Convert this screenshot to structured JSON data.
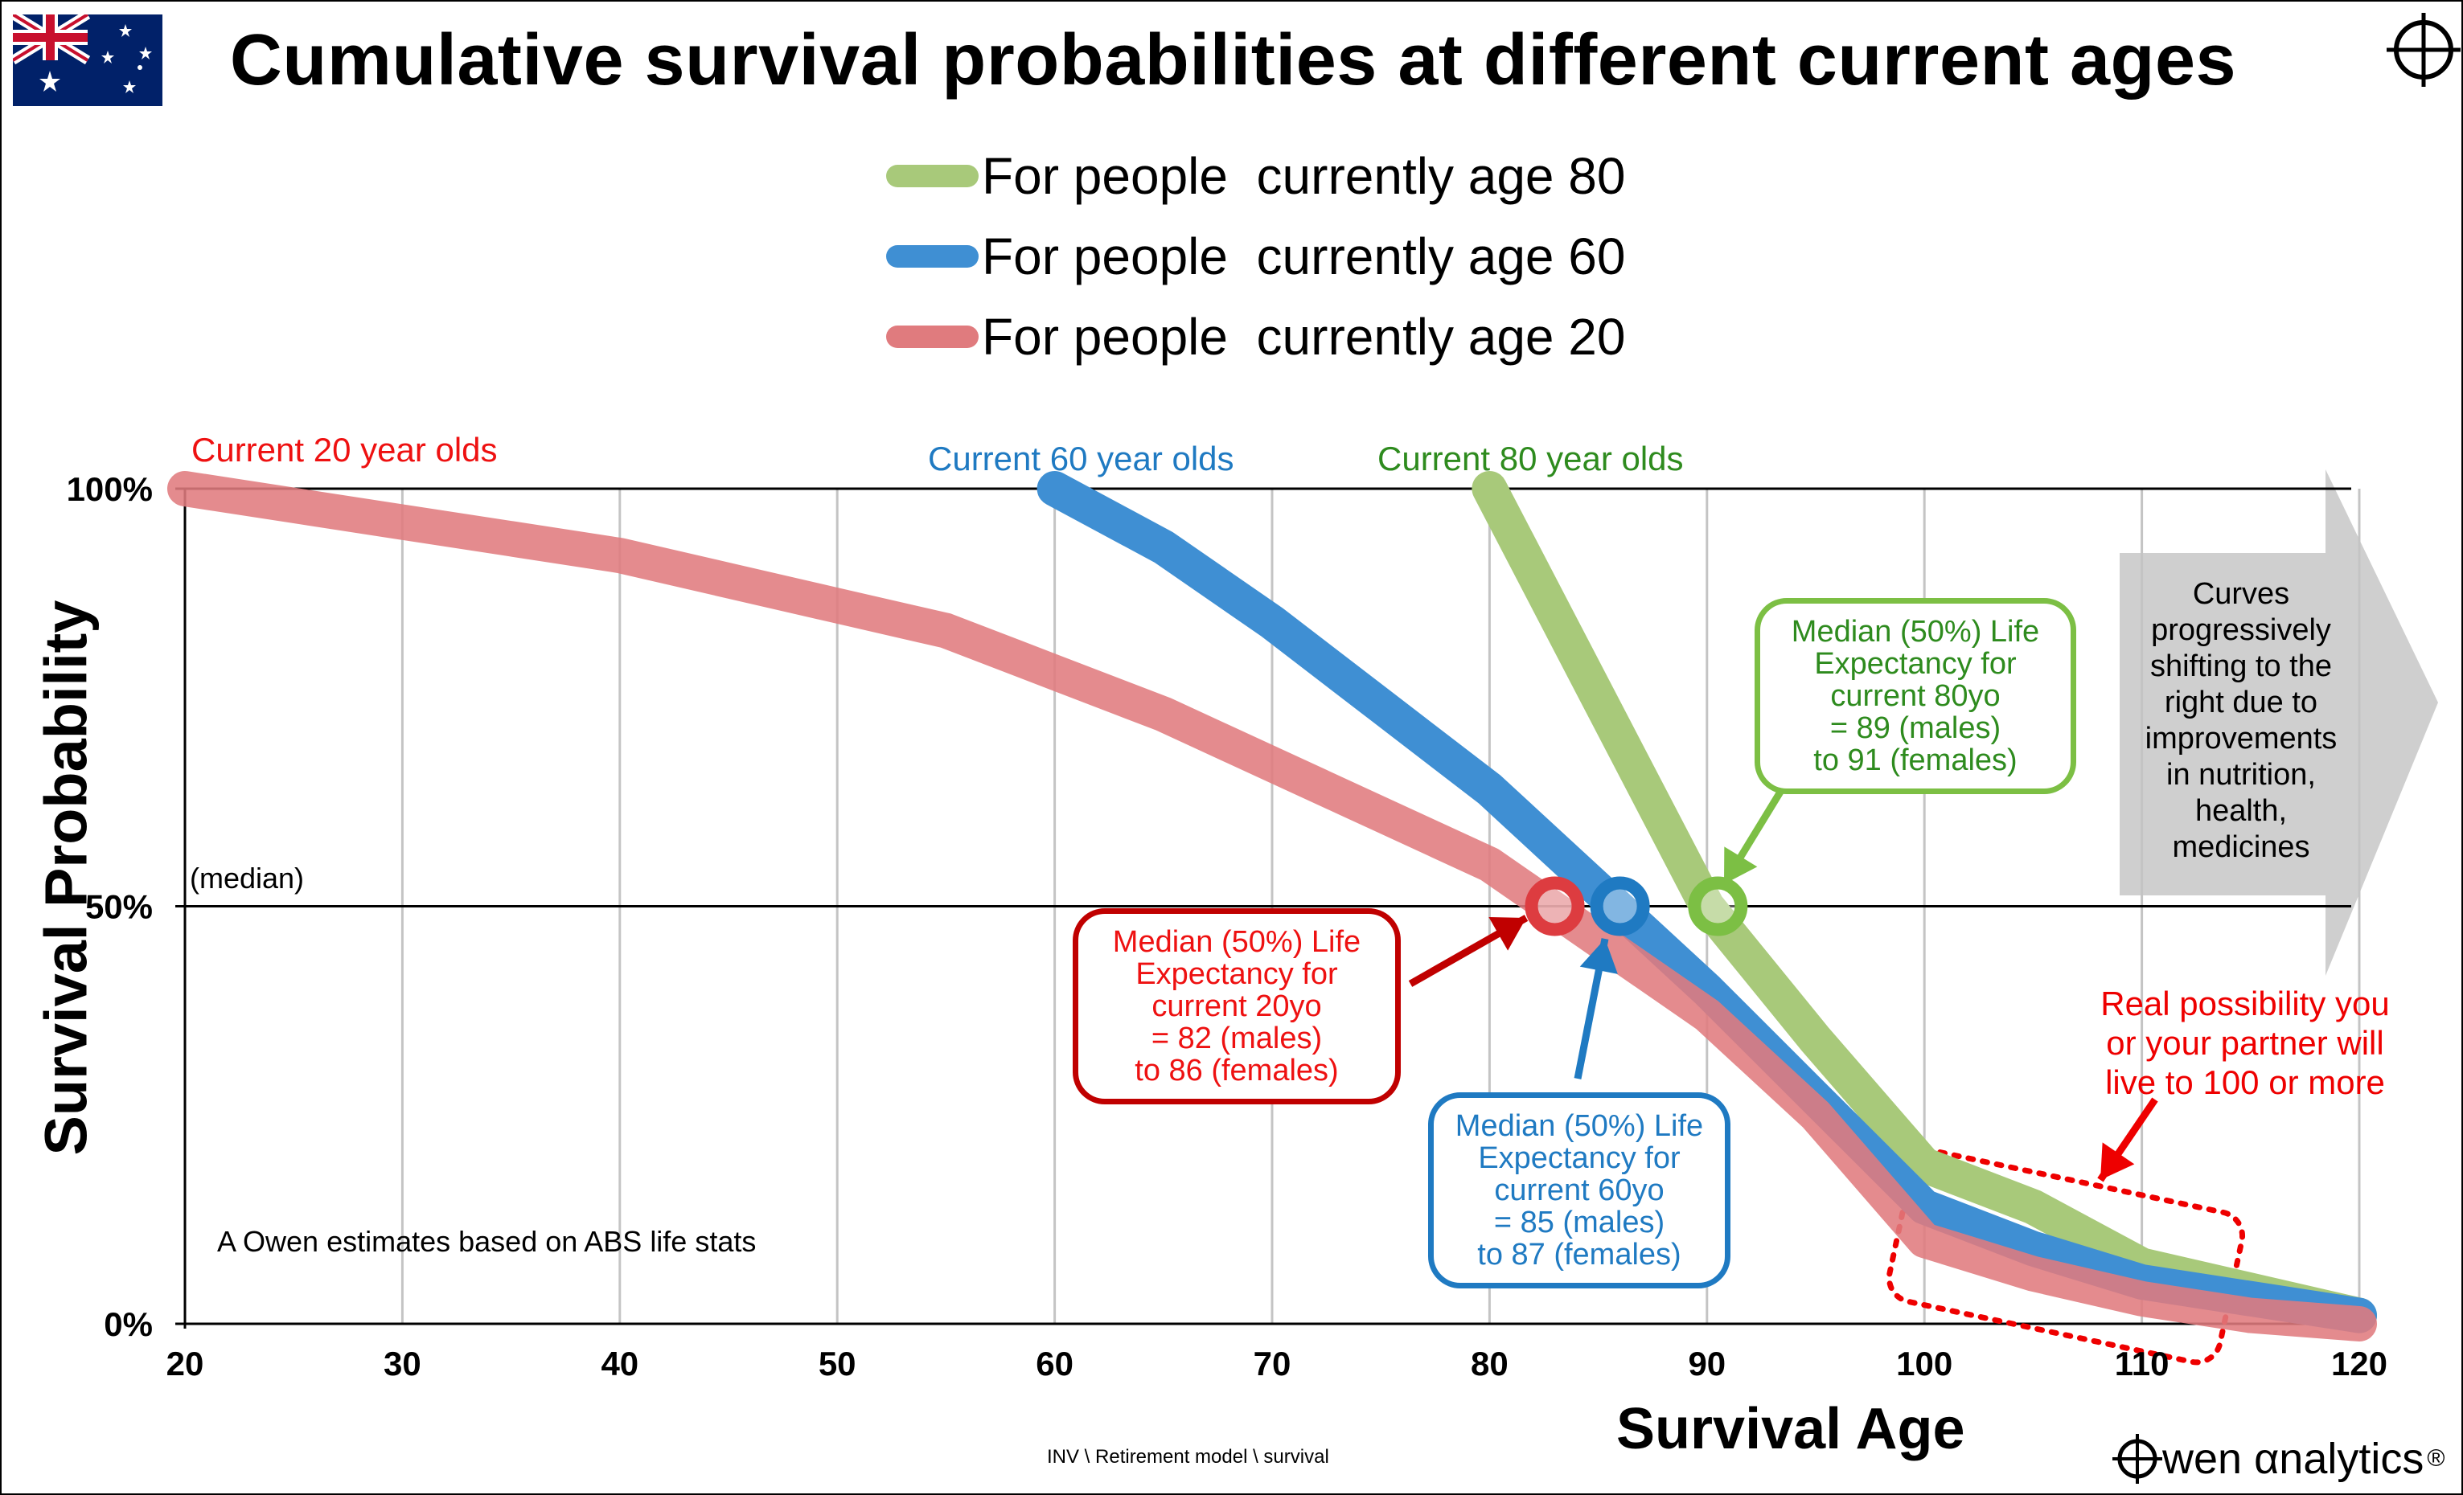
{
  "title": "Cumulative survival probabilities at different current ages",
  "colors": {
    "age80": "#a8c97a",
    "age60": "#3f8fd3",
    "age20": "#e07b7e",
    "green_text": "#2e8b1e",
    "blue_text": "#1f7ac2",
    "red_text": "#ee1111",
    "arrow_grey": "#cfcfcf"
  },
  "icons": {
    "flag": "australia-flag-icon",
    "crosshair": "crosshair-icon",
    "brand": "owen-alpha-logo-icon"
  },
  "legend": [
    {
      "key": "age80",
      "label": "For people  currently age 80"
    },
    {
      "key": "age60",
      "label": "For people  currently age 60"
    },
    {
      "key": "age20",
      "label": "For people  currently age 20"
    }
  ],
  "chart_data": {
    "type": "line",
    "xlabel": "Survival Age",
    "ylabel": "Survival Probability",
    "xlim": [
      20,
      120
    ],
    "ylim": [
      0,
      100
    ],
    "x_ticks": [
      "20",
      "30",
      "40",
      "50",
      "60",
      "70",
      "80",
      "90",
      "100",
      "110",
      "120"
    ],
    "y_ticks": [
      {
        "value": 100,
        "label": "100%"
      },
      {
        "value": 50,
        "label": "50%"
      },
      {
        "value": 0,
        "label": "0%"
      }
    ],
    "grid": "vertical",
    "legend_position": "top-center",
    "series": [
      {
        "key": "age80",
        "x": [
          80,
          85,
          90,
          95,
          100,
          105,
          110,
          115,
          120
        ],
        "y": [
          100,
          75,
          50,
          34,
          19,
          14,
          7,
          4,
          1
        ]
      },
      {
        "key": "age60",
        "x": [
          60,
          65,
          70,
          75,
          80,
          85,
          90,
          95,
          100,
          105,
          110,
          115,
          120
        ],
        "y": [
          100,
          93,
          84,
          74,
          64,
          52,
          40,
          27,
          14,
          9,
          5,
          3,
          1
        ]
      },
      {
        "key": "age20",
        "x": [
          20,
          25,
          30,
          35,
          40,
          45,
          50,
          55,
          60,
          65,
          70,
          75,
          80,
          85,
          90,
          95,
          100,
          105,
          110,
          115,
          120
        ],
        "y": [
          100,
          98,
          96,
          94,
          92,
          89,
          86,
          83,
          78,
          73,
          67,
          61,
          55,
          46,
          37,
          25,
          10,
          6,
          3,
          1,
          0
        ]
      }
    ],
    "median_markers": [
      {
        "key": "age20",
        "x": 83,
        "y": 50
      },
      {
        "key": "age60",
        "x": 86,
        "y": 50
      },
      {
        "key": "age80",
        "x": 90.5,
        "y": 50
      }
    ],
    "curve_labels": {
      "age20": "Current 20 year olds",
      "age60": "Current 60 year olds",
      "age80": "Current 80 year olds"
    },
    "median_label": "(median)",
    "callouts": {
      "age80": "Median (50%) Life\nExpectancy for\ncurrent 80yo\n= 89 (males)\nto 91 (females)",
      "age20": "Median (50%) Life\nExpectancy for\ncurrent 20yo\n= 82 (males)\nto 86 (females)",
      "age60": "Median (50%) Life\nExpectancy for\ncurrent 60yo\n= 85 (males)\nto 87 (females)"
    },
    "shift_note": "Curves\nprogressively\nshifting to the\nright due to\nimprovements\nin nutrition,\nhealth,\nmedicines",
    "real_note": "Real possibility you\nor your partner will\nlive to 100 or more",
    "source_note": "A Owen estimates based on ABS life stats"
  },
  "footer": "INV \\ Retirement model \\ survival",
  "brand": {
    "name": "wen αnalytics",
    "reg": "®"
  }
}
